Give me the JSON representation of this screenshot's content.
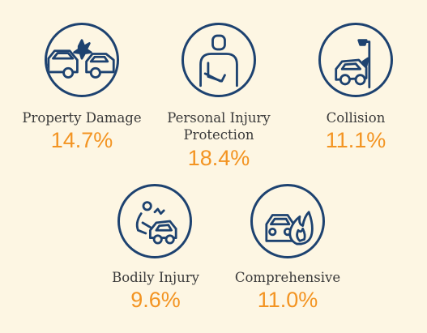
{
  "chart_data": {
    "type": "table",
    "title": "",
    "categories": [
      "Property Damage",
      "Personal Injury\nProtection",
      "Collision",
      "Bodily Injury",
      "Comprehensive"
    ],
    "value_labels": [
      "14.7%",
      "18.4%",
      "11.1%",
      "9.6%",
      "11.0%"
    ],
    "values": [
      14.7,
      18.4,
      11.1,
      9.6,
      11.0
    ],
    "icons": [
      "car-crash-icon",
      "injured-person-icon",
      "car-pole-collision-icon",
      "injured-driver-icon",
      "car-fire-icon"
    ]
  },
  "colors": {
    "background": "#fdf6e3",
    "icon_stroke": "#1d4270",
    "value": "#f39422",
    "label": "#3a3a3a"
  }
}
